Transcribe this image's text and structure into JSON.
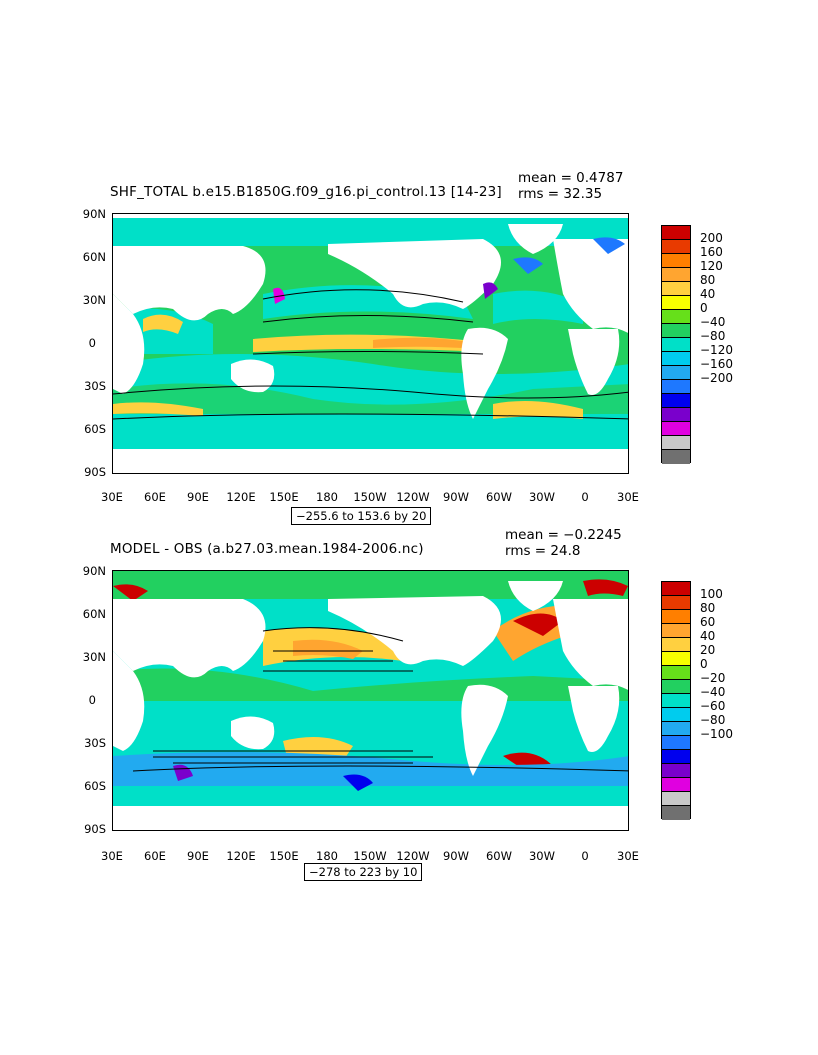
{
  "panel1": {
    "title": "SHF_TOTAL b.e15.B1850G.f09_g16.pi_control.13 [14-23]",
    "mean": "mean = 0.4787",
    "rms": "rms = 32.35",
    "contour_info": "−255.6 to 153.6 by 20",
    "colorbar_labels": [
      "200",
      "160",
      "120",
      "80",
      "40",
      "0",
      "−40",
      "−80",
      "−120",
      "−160",
      "−200"
    ],
    "colors": [
      "#cc0000",
      "#e83a00",
      "#ff7f00",
      "#ffa530",
      "#ffd040",
      "#f8ff00",
      "#66e01a",
      "#22d060",
      "#00e0c8",
      "#00ccee",
      "#22aaf0",
      "#1e78ff",
      "#0000ee",
      "#7a00cc",
      "#e000e0",
      "#c8c8c8",
      "#707070"
    ]
  },
  "panel2": {
    "title": "MODEL - OBS (a.b27.03.mean.1984-2006.nc)",
    "mean": "mean = −0.2245",
    "rms": "rms = 24.8",
    "contour_info": "−278 to 223 by 10",
    "colorbar_labels": [
      "100",
      "80",
      "60",
      "40",
      "20",
      "0",
      "−20",
      "−40",
      "−60",
      "−80",
      "−100"
    ],
    "colors": [
      "#cc0000",
      "#e83a00",
      "#ff7f00",
      "#ffa530",
      "#ffd040",
      "#f8ff00",
      "#66e01a",
      "#22d060",
      "#00e0c8",
      "#00ccee",
      "#22aaf0",
      "#1e78ff",
      "#0000ee",
      "#7a00cc",
      "#e000e0",
      "#c8c8c8",
      "#707070"
    ]
  },
  "axes": {
    "lat_labels": [
      "90N",
      "60N",
      "30N",
      "0",
      "30S",
      "60S",
      "90S"
    ],
    "lon_labels": [
      "30E",
      "60E",
      "90E",
      "120E",
      "150E",
      "180",
      "150W",
      "120W",
      "90W",
      "60W",
      "30W",
      "0",
      "30E"
    ]
  }
}
